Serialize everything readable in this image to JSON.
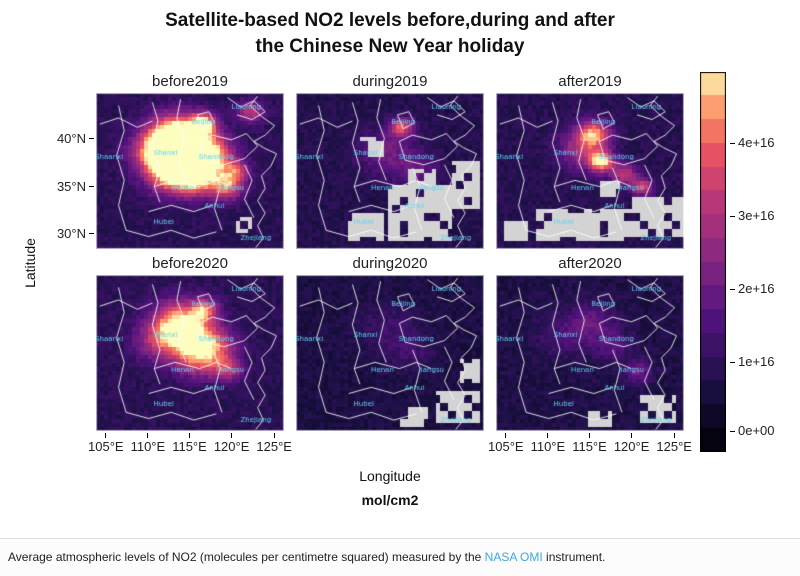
{
  "title": {
    "line1": "Satellite-based NO2 levels before,during and after",
    "line2": "the Chinese New Year holiday"
  },
  "axis": {
    "y_label": "Latitude",
    "x_label": "Longitude",
    "units_label": "mol/cm2",
    "y_ticks": [
      "40°N",
      "35°N",
      "30°N"
    ],
    "x_ticks": [
      "105°E",
      "110°E",
      "115°E",
      "120°E",
      "125°E"
    ]
  },
  "colorbar": {
    "tick_labels": [
      "4e+16",
      "3e+16",
      "2e+16",
      "1e+16",
      "0e+00"
    ],
    "colormap": [
      {
        "t": 0.0,
        "c": "#000004"
      },
      {
        "t": 0.18,
        "c": "#1d1147"
      },
      {
        "t": 0.35,
        "c": "#51127c"
      },
      {
        "t": 0.5,
        "c": "#822681"
      },
      {
        "t": 0.65,
        "c": "#b63679"
      },
      {
        "t": 0.78,
        "c": "#e65164"
      },
      {
        "t": 0.88,
        "c": "#fb8861"
      },
      {
        "t": 0.95,
        "c": "#fec287"
      },
      {
        "t": 1.0,
        "c": "#fcfdbf"
      }
    ]
  },
  "caption": {
    "prefix": "Average atmospheric levels of NO2 (molecules per centimetre squared) measured by the ",
    "link_text": "NASA OMI",
    "suffix": " instrument."
  },
  "colors": {
    "missing_data": "#d3d3d3",
    "province_label": "#5fd3f3",
    "boundary": "#ffffff",
    "link": "#3fa7dc"
  },
  "chart_data": {
    "type": "heatmap",
    "title": "Satellite-based NO2 levels before,during and after the Chinese New Year holiday",
    "xlabel": "Longitude",
    "ylabel": "Latitude",
    "units": "mol/cm2",
    "x_tick_labels": [
      "105°E",
      "110°E",
      "115°E",
      "120°E",
      "125°E"
    ],
    "y_tick_labels": [
      "40°N",
      "35°N",
      "30°N"
    ],
    "value_scale": {
      "min": 0,
      "max": 4e+16,
      "tick_values": [
        0,
        1e+16,
        2e+16,
        3e+16,
        4e+16
      ],
      "tick_labels": [
        "0e+00",
        "1e+16",
        "2e+16",
        "3e+16",
        "4e+16"
      ]
    },
    "legend_position": "right",
    "panels": [
      {
        "name": "before2019",
        "base": 0.22,
        "blobs": [
          {
            "x": 0.42,
            "y": 0.28,
            "r": 0.1,
            "a": 0.85
          },
          {
            "x": 0.48,
            "y": 0.4,
            "r": 0.12,
            "a": 0.8
          },
          {
            "x": 0.4,
            "y": 0.52,
            "r": 0.09,
            "a": 0.6
          },
          {
            "x": 0.57,
            "y": 0.2,
            "r": 0.05,
            "a": 0.7
          },
          {
            "x": 0.62,
            "y": 0.4,
            "r": 0.08,
            "a": 0.5
          },
          {
            "x": 0.7,
            "y": 0.6,
            "r": 0.06,
            "a": 0.55
          },
          {
            "x": 0.75,
            "y": 0.5,
            "r": 0.05,
            "a": 0.4
          },
          {
            "x": 0.3,
            "y": 0.38,
            "r": 0.09,
            "a": 0.45
          },
          {
            "x": 0.55,
            "y": 0.55,
            "r": 0.08,
            "a": 0.5
          },
          {
            "x": 0.82,
            "y": 0.12,
            "r": 0.05,
            "a": 0.45
          }
        ],
        "gray": [
          {
            "x": 0.74,
            "y": 0.8,
            "w": 0.1,
            "h": 0.1
          }
        ]
      },
      {
        "name": "during2019",
        "base": 0.2,
        "blobs": [
          {
            "x": 0.56,
            "y": 0.22,
            "r": 0.045,
            "a": 0.55
          },
          {
            "x": 0.48,
            "y": 0.38,
            "r": 0.1,
            "a": 0.25
          },
          {
            "x": 0.65,
            "y": 0.5,
            "r": 0.08,
            "a": 0.2
          }
        ],
        "gray": [
          {
            "x": 0.48,
            "y": 0.6,
            "w": 0.34,
            "h": 0.34
          },
          {
            "x": 0.28,
            "y": 0.78,
            "w": 0.18,
            "h": 0.16
          },
          {
            "x": 0.84,
            "y": 0.44,
            "w": 0.14,
            "h": 0.3
          },
          {
            "x": 0.34,
            "y": 0.28,
            "w": 0.12,
            "h": 0.14
          },
          {
            "x": 0.6,
            "y": 0.5,
            "w": 0.15,
            "h": 0.12
          }
        ]
      },
      {
        "name": "after2019",
        "base": 0.21,
        "blobs": [
          {
            "x": 0.52,
            "y": 0.26,
            "r": 0.06,
            "a": 0.6
          },
          {
            "x": 0.56,
            "y": 0.44,
            "r": 0.045,
            "a": 0.75
          },
          {
            "x": 0.46,
            "y": 0.36,
            "r": 0.09,
            "a": 0.4
          },
          {
            "x": 0.68,
            "y": 0.52,
            "r": 0.05,
            "a": 0.45
          },
          {
            "x": 0.78,
            "y": 0.6,
            "r": 0.04,
            "a": 0.5
          }
        ],
        "gray": [
          {
            "x": 0.22,
            "y": 0.74,
            "w": 0.5,
            "h": 0.2
          },
          {
            "x": 0.72,
            "y": 0.66,
            "w": 0.28,
            "h": 0.26
          },
          {
            "x": 0.04,
            "y": 0.82,
            "w": 0.14,
            "h": 0.12
          },
          {
            "x": 0.55,
            "y": 0.56,
            "w": 0.1,
            "h": 0.1
          }
        ]
      },
      {
        "name": "before2020",
        "base": 0.22,
        "blobs": [
          {
            "x": 0.44,
            "y": 0.3,
            "r": 0.1,
            "a": 0.6
          },
          {
            "x": 0.5,
            "y": 0.42,
            "r": 0.11,
            "a": 0.55
          },
          {
            "x": 0.58,
            "y": 0.22,
            "r": 0.05,
            "a": 0.5
          },
          {
            "x": 0.64,
            "y": 0.45,
            "r": 0.08,
            "a": 0.35
          },
          {
            "x": 0.7,
            "y": 0.6,
            "r": 0.06,
            "a": 0.4
          },
          {
            "x": 0.32,
            "y": 0.42,
            "r": 0.09,
            "a": 0.3
          },
          {
            "x": 0.55,
            "y": 0.55,
            "r": 0.08,
            "a": 0.35
          }
        ],
        "gray": []
      },
      {
        "name": "during2020",
        "base": 0.17,
        "blobs": [
          {
            "x": 0.5,
            "y": 0.35,
            "r": 0.12,
            "a": 0.12
          },
          {
            "x": 0.62,
            "y": 0.5,
            "r": 0.08,
            "a": 0.1
          }
        ],
        "gray": [
          {
            "x": 0.74,
            "y": 0.74,
            "w": 0.24,
            "h": 0.22
          },
          {
            "x": 0.55,
            "y": 0.85,
            "w": 0.16,
            "h": 0.12
          },
          {
            "x": 0.88,
            "y": 0.55,
            "w": 0.1,
            "h": 0.15
          }
        ]
      },
      {
        "name": "after2020",
        "base": 0.18,
        "blobs": [
          {
            "x": 0.5,
            "y": 0.3,
            "r": 0.09,
            "a": 0.22
          },
          {
            "x": 0.62,
            "y": 0.45,
            "r": 0.07,
            "a": 0.18
          },
          {
            "x": 0.76,
            "y": 0.62,
            "r": 0.05,
            "a": 0.28
          },
          {
            "x": 0.35,
            "y": 0.4,
            "r": 0.1,
            "a": 0.12
          }
        ],
        "gray": [
          {
            "x": 0.76,
            "y": 0.78,
            "w": 0.2,
            "h": 0.18
          },
          {
            "x": 0.5,
            "y": 0.88,
            "w": 0.12,
            "h": 0.1
          }
        ]
      }
    ],
    "province_labels": [
      {
        "name": "Shaanxi",
        "x": 0.07,
        "y": 0.42
      },
      {
        "name": "Shanxi",
        "x": 0.37,
        "y": 0.4
      },
      {
        "name": "Beijing",
        "x": 0.57,
        "y": 0.2
      },
      {
        "name": "Liaoning",
        "x": 0.8,
        "y": 0.1
      },
      {
        "name": "Shandong",
        "x": 0.64,
        "y": 0.42
      },
      {
        "name": "Henan",
        "x": 0.46,
        "y": 0.62
      },
      {
        "name": "Jiangsu",
        "x": 0.72,
        "y": 0.62
      },
      {
        "name": "Anhui",
        "x": 0.63,
        "y": 0.74
      },
      {
        "name": "Hubei",
        "x": 0.36,
        "y": 0.84
      },
      {
        "name": "Zhejiang",
        "x": 0.85,
        "y": 0.94
      }
    ],
    "boundaries": [
      [
        [
          0.86,
          0.02
        ],
        [
          0.82,
          0.08
        ],
        [
          0.88,
          0.15
        ],
        [
          0.95,
          0.21
        ],
        [
          0.9,
          0.27
        ],
        [
          0.84,
          0.31
        ],
        [
          0.89,
          0.35
        ],
        [
          0.96,
          0.39
        ],
        [
          0.93,
          0.47
        ],
        [
          0.88,
          0.53
        ],
        [
          0.9,
          0.61
        ],
        [
          0.86,
          0.69
        ],
        [
          0.9,
          0.77
        ],
        [
          0.86,
          0.85
        ],
        [
          0.89,
          0.93
        ],
        [
          0.85,
          0.99
        ]
      ],
      [
        [
          0.3,
          0.06
        ],
        [
          0.33,
          0.18
        ],
        [
          0.3,
          0.32
        ],
        [
          0.34,
          0.48
        ],
        [
          0.31,
          0.6
        ],
        [
          0.34,
          0.7
        ]
      ],
      [
        [
          0.45,
          0.04
        ],
        [
          0.43,
          0.16
        ],
        [
          0.47,
          0.29
        ],
        [
          0.44,
          0.44
        ],
        [
          0.48,
          0.56
        ]
      ],
      [
        [
          0.31,
          0.6
        ],
        [
          0.42,
          0.56
        ],
        [
          0.55,
          0.6
        ],
        [
          0.64,
          0.56
        ],
        [
          0.72,
          0.6
        ]
      ],
      [
        [
          0.55,
          0.31
        ],
        [
          0.62,
          0.27
        ],
        [
          0.72,
          0.3
        ],
        [
          0.8,
          0.26
        ],
        [
          0.86,
          0.34
        ],
        [
          0.79,
          0.42
        ],
        [
          0.68,
          0.46
        ],
        [
          0.58,
          0.43
        ],
        [
          0.55,
          0.31
        ]
      ],
      [
        [
          0.54,
          0.14
        ],
        [
          0.6,
          0.12
        ],
        [
          0.63,
          0.19
        ],
        [
          0.57,
          0.23
        ],
        [
          0.54,
          0.14
        ]
      ],
      [
        [
          0.7,
          0.03
        ],
        [
          0.77,
          0.09
        ],
        [
          0.84,
          0.05
        ],
        [
          0.9,
          0.12
        ],
        [
          0.83,
          0.17
        ],
        [
          0.75,
          0.14
        ]
      ],
      [
        [
          0.28,
          0.76
        ],
        [
          0.4,
          0.72
        ],
        [
          0.52,
          0.76
        ],
        [
          0.62,
          0.72
        ]
      ],
      [
        [
          0.62,
          0.48
        ],
        [
          0.66,
          0.6
        ],
        [
          0.63,
          0.74
        ],
        [
          0.67,
          0.88
        ]
      ],
      [
        [
          0.79,
          0.46
        ],
        [
          0.83,
          0.56
        ],
        [
          0.79,
          0.68
        ],
        [
          0.84,
          0.8
        ]
      ],
      [
        [
          0.12,
          0.08
        ],
        [
          0.15,
          0.24
        ],
        [
          0.11,
          0.4
        ],
        [
          0.15,
          0.56
        ],
        [
          0.12,
          0.72
        ],
        [
          0.16,
          0.88
        ]
      ],
      [
        [
          0.02,
          0.2
        ],
        [
          0.12,
          0.16
        ],
        [
          0.22,
          0.22
        ],
        [
          0.3,
          0.18
        ]
      ],
      [
        [
          0.16,
          0.88
        ],
        [
          0.28,
          0.92
        ],
        [
          0.4,
          0.88
        ],
        [
          0.52,
          0.93
        ],
        [
          0.64,
          0.89
        ]
      ]
    ]
  }
}
